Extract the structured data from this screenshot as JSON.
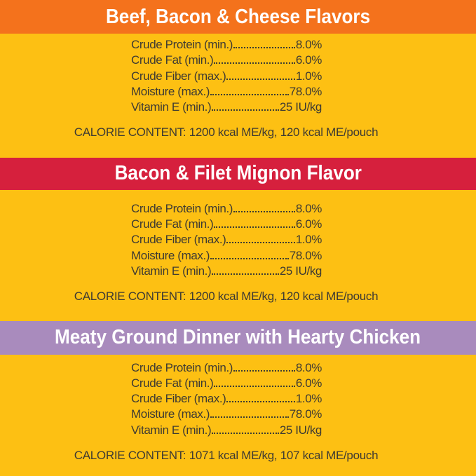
{
  "page": {
    "background": "#FDC013",
    "text_color": "#3E3A33"
  },
  "sections": [
    {
      "id": "beef-bacon-cheese",
      "header": {
        "label": "Beef, Bacon & Cheese Flavors",
        "background": "#F4721C",
        "text_color": "#FFFFFF"
      },
      "nutrition": [
        {
          "label": "Crude Protein (min.)",
          "value": "8.0%"
        },
        {
          "label": "Crude Fat (min.)",
          "value": "6.0%"
        },
        {
          "label": "Crude Fiber (max.)",
          "value": "1.0%"
        },
        {
          "label": "Moisture (max.)",
          "value": "78.0%"
        },
        {
          "label": "Vitamin E (min.)",
          "value": "25 IU/kg"
        }
      ],
      "calorie_content": "CALORIE CONTENT: 1200 kcal ME/kg, 120 kcal ME/pouch"
    },
    {
      "id": "bacon-filet-mignon",
      "header": {
        "label": "Bacon & Filet Mignon Flavor",
        "background": "#D6203D",
        "text_color": "#FFFFFF"
      },
      "nutrition": [
        {
          "label": "Crude Protein (min.)",
          "value": "8.0%"
        },
        {
          "label": "Crude Fat (min.)",
          "value": "6.0%"
        },
        {
          "label": "Crude Fiber (max.)",
          "value": "1.0%"
        },
        {
          "label": "Moisture (max.)",
          "value": "78.0%"
        },
        {
          "label": "Vitamin E (min.)",
          "value": "25 IU/kg"
        }
      ],
      "calorie_content": "CALORIE CONTENT: 1200 kcal ME/kg, 120 kcal ME/pouch"
    },
    {
      "id": "meaty-ground-dinner-chicken",
      "header": {
        "label": "Meaty Ground Dinner with Hearty Chicken",
        "background": "#A98BBD",
        "text_color": "#FFFFFF"
      },
      "nutrition": [
        {
          "label": "Crude Protein (min.)",
          "value": "8.0%"
        },
        {
          "label": "Crude Fat (min.)",
          "value": "6.0%"
        },
        {
          "label": "Crude Fiber (max.)",
          "value": "1.0%"
        },
        {
          "label": "Moisture (max.)",
          "value": "78.0%"
        },
        {
          "label": "Vitamin E (min.)",
          "value": "25 IU/kg"
        }
      ],
      "calorie_content": "CALORIE CONTENT: 1071 kcal ME/kg, 107 kcal ME/pouch"
    }
  ]
}
